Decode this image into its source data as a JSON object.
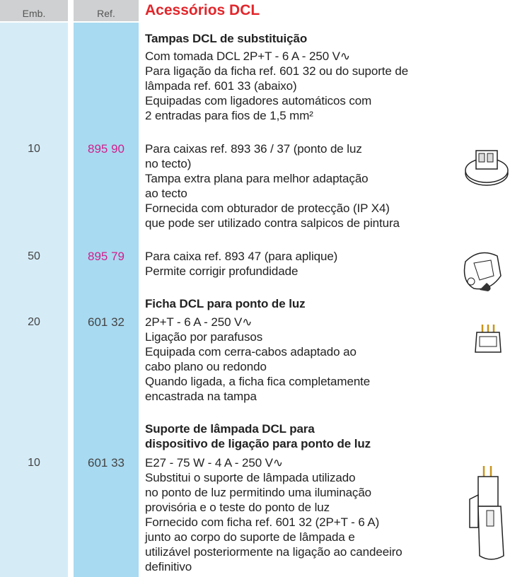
{
  "header": {
    "emb": "Emb.",
    "ref": "Ref.",
    "title": "Acessórios DCL"
  },
  "sections": [
    {
      "heading": [
        "Tampas DCL de substituição"
      ],
      "items": [
        {
          "lines": [
            "Com tomada DCL 2P+T - 6 A - 250 V∿",
            "Para ligação da ficha ref. 601 32 ou do suporte de",
            "lâmpada ref. 601 33 (abaixo)",
            "Equipadas com ligadores automáticos com",
            "2 entradas para fios de 1,5 mm²"
          ]
        },
        {
          "emb": "10",
          "ref": "895 90",
          "lines": [
            "Para caixas ref. 893 36 / 37 (ponto de luz",
            "no tecto)",
            "Tampa extra plana para melhor adaptação",
            "ao tecto",
            "Fornecida com obturador de protecção (IP X4)",
            "que pode ser utilizado contra salpicos de pintura"
          ]
        },
        {
          "emb": "50",
          "ref": "895 79",
          "lines": [
            "Para caixa ref. 893 47 (para aplique)",
            "Permite corrigir profundidade"
          ]
        }
      ]
    },
    {
      "heading": [
        "Ficha DCL para ponto de luz"
      ],
      "items": [
        {
          "emb": "20",
          "ref": "601 32",
          "lines": [
            "2P+T - 6 A - 250 V∿",
            "Ligação por parafusos",
            "Equipada com cerra-cabos adaptado ao",
            "cabo plano ou redondo",
            "Quando ligada, a ficha fica completamente",
            "encastrada na tampa"
          ]
        }
      ]
    },
    {
      "heading": [
        "Suporte de lâmpada DCL para",
        "dispositivo de ligação para ponto de luz"
      ],
      "items": [
        {
          "emb": "10",
          "ref": "601 33",
          "lines": [
            "E27 - 75 W - 4 A - 250 V∿",
            "Substitui o suporte de lâmpada utilizado",
            "no ponto de luz permitindo uma iluminação",
            "provisória e o teste do ponto de luz",
            "Fornecido com ficha ref. 601 32 (2P+T - 6 A)",
            "junto ao corpo do suporte de lâmpada e",
            "utilizável posteriormente na ligação ao candeeiro",
            "definitivo"
          ]
        }
      ]
    }
  ]
}
